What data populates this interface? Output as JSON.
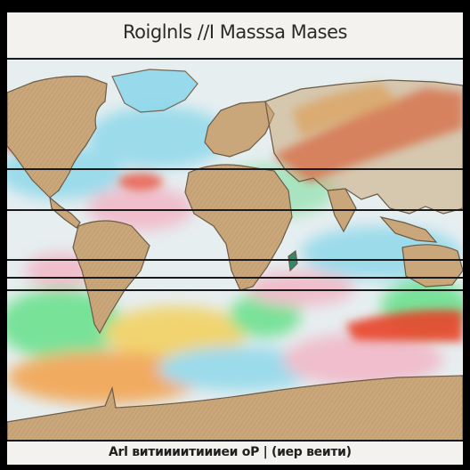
{
  "map": {
    "title": "Roiglnls /∕I Masssa Mases",
    "caption": "Arl витиииитиииеи oP | (иер веити)",
    "colors": {
      "background": "#f4f2ee",
      "land": "#c9a77a",
      "land_outline": "#6b5a44",
      "hot": "#e8442a",
      "warm": "#f3a04a",
      "cool": "#7fd3e6",
      "green": "#66e08a",
      "pink": "#f2b6c6",
      "lines": "#1a1a1a"
    }
  }
}
